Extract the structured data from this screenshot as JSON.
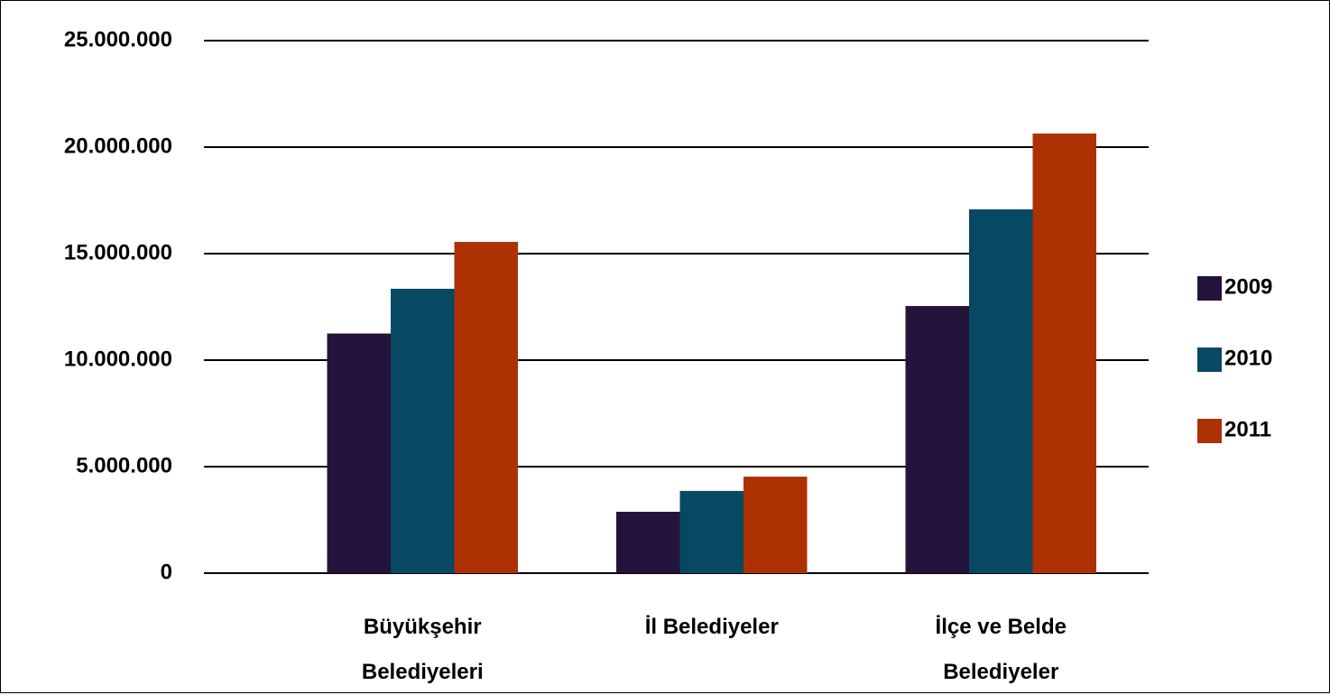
{
  "chart_data": {
    "type": "bar",
    "categories": [
      "Büyükşehir Belediyeleri",
      "İl Belediyeler",
      "İlçe ve Belde Belediyeler"
    ],
    "series": [
      {
        "name": "2009",
        "color": "#24133a",
        "values": [
          11250000,
          2880000,
          12540000
        ]
      },
      {
        "name": "2010",
        "color": "#074862",
        "values": [
          13350000,
          3860000,
          17080000
        ]
      },
      {
        "name": "2011",
        "color": "#ae3103",
        "values": [
          15550000,
          4530000,
          20640000
        ]
      }
    ],
    "ylim": [
      0,
      25000000
    ],
    "yticks": [
      0,
      {
        "value": 5000000,
        "label": "5.000.000"
      },
      {
        "value": 10000000,
        "label": "10.000.000"
      },
      {
        "value": 15000000,
        "label": "15.000.000"
      },
      {
        "value": 20000000,
        "label": "20.000.000"
      },
      {
        "value": 25000000,
        "label": "25.000.000"
      }
    ],
    "grid": true,
    "legend": "right"
  }
}
